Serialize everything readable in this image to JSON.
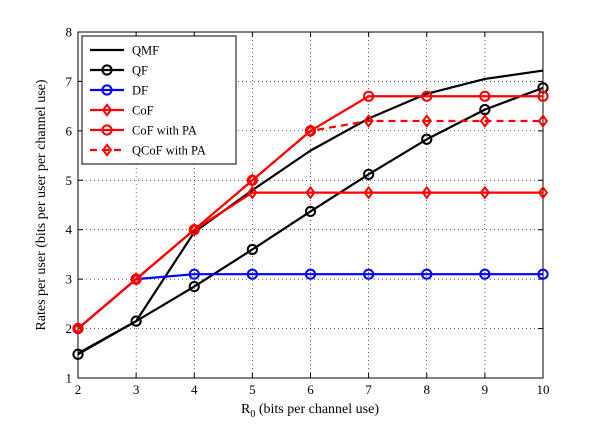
{
  "chart_data": {
    "type": "line",
    "title": "",
    "xlabel": "R",
    "xlabel_subscript": "0",
    "xlabel_suffix": " (bits per channel use)",
    "ylabel": "Rates per user (bits per user per channel use)",
    "xlim": [
      2,
      10
    ],
    "ylim": [
      1,
      8
    ],
    "xticks": [
      "2",
      "3",
      "4",
      "5",
      "6",
      "7",
      "8",
      "9",
      "10"
    ],
    "yticks": [
      "1",
      "2",
      "3",
      "4",
      "5",
      "6",
      "7",
      "8"
    ],
    "grid": true,
    "legend_position": "top-left",
    "x": [
      2,
      3,
      4,
      5,
      6,
      7,
      8,
      9,
      10
    ],
    "series": [
      {
        "name": "QMF",
        "color": "#000000",
        "line_style": "solid",
        "marker": "none",
        "values": [
          1.5,
          2.15,
          3.95,
          4.8,
          5.6,
          6.25,
          6.75,
          7.05,
          7.22
        ]
      },
      {
        "name": "QF",
        "color": "#000000",
        "line_style": "solid",
        "marker": "circle",
        "values": [
          1.48,
          2.15,
          2.85,
          3.6,
          4.37,
          5.12,
          5.83,
          6.43,
          6.87
        ]
      },
      {
        "name": "DF",
        "color": "#0000ff",
        "line_style": "solid",
        "marker": "circle",
        "values": [
          2.0,
          3.0,
          3.1,
          3.1,
          3.1,
          3.1,
          3.1,
          3.1,
          3.1
        ]
      },
      {
        "name": "CoF",
        "color": "#ff0000",
        "line_style": "solid",
        "marker": "diamond",
        "values": [
          2.0,
          3.0,
          4.0,
          4.75,
          4.75,
          4.75,
          4.75,
          4.75,
          4.75
        ]
      },
      {
        "name": "CoF with PA",
        "color": "#ff0000",
        "line_style": "solid",
        "marker": "circle",
        "values": [
          2.0,
          3.0,
          4.0,
          5.0,
          6.0,
          6.7,
          6.7,
          6.7,
          6.7
        ]
      },
      {
        "name": "QCoF with PA",
        "color": "#ff0000",
        "line_style": "dashed",
        "marker": "diamond",
        "values": [
          2.0,
          3.0,
          4.0,
          5.0,
          6.0,
          6.2,
          6.2,
          6.2,
          6.2
        ]
      }
    ]
  }
}
